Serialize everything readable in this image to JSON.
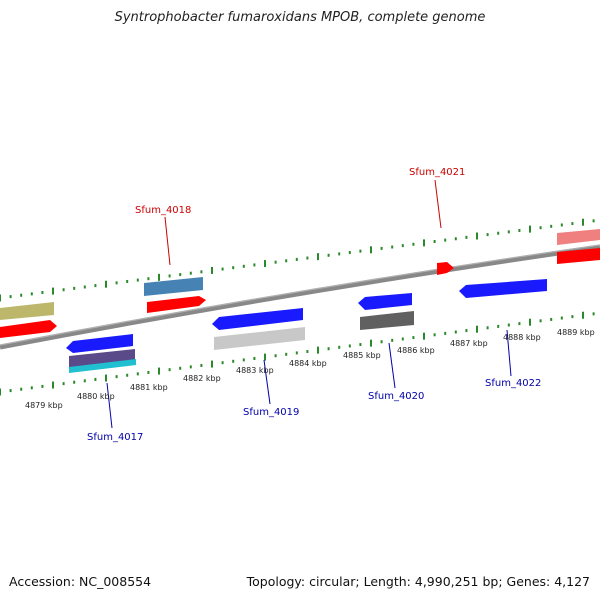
{
  "title": "Syntrophobacter fumaroxidans MPOB, complete genome",
  "footer": {
    "accession": "Accession: NC_008554",
    "summary": "Topology: circular; Length: 4,990,251 bp; Genes: 4,127"
  },
  "colors": {
    "background": "#ffffff",
    "backbone": "#8a8a8a",
    "ticks": "#2a8a2a",
    "label_forward": "#cc0000",
    "label_reverse": "#0000aa",
    "cds_red": "#ff0000",
    "cds_blue": "#1a1aff",
    "steelblue": "#4682b4",
    "khaki": "#bdb76b",
    "pink": "#f08080",
    "lightgray": "#c8c8c8",
    "darkgray": "#606060",
    "purple": "#5a4a8a",
    "cyan": "#20c0d0"
  },
  "ruler": {
    "unit": "kbp",
    "labels": [
      "4879 kbp",
      "4880 kbp",
      "4881 kbp",
      "4882 kbp",
      "4883 kbp",
      "4884 kbp",
      "4885 kbp",
      "4886 kbp",
      "4887 kbp",
      "4888 kbp",
      "4889 kbp"
    ]
  },
  "gene_labels": [
    {
      "name": "Sfum_4017",
      "strand": "reverse"
    },
    {
      "name": "Sfum_4018",
      "strand": "forward"
    },
    {
      "name": "Sfum_4019",
      "strand": "reverse"
    },
    {
      "name": "Sfum_4020",
      "strand": "reverse"
    },
    {
      "name": "Sfum_4021",
      "strand": "forward"
    },
    {
      "name": "Sfum_4022",
      "strand": "reverse"
    }
  ]
}
